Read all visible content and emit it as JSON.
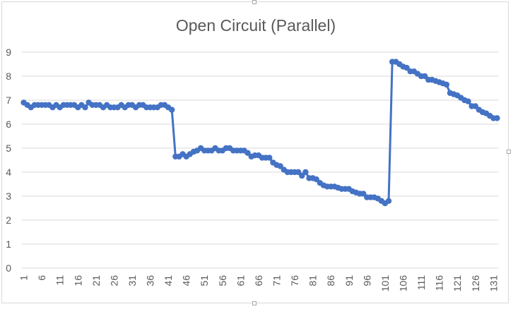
{
  "chart_data": {
    "type": "line",
    "title": "Open Circuit (Parallel)",
    "xlabel": "",
    "ylabel": "",
    "ylim": [
      0,
      9
    ],
    "y_ticks": [
      0,
      1,
      2,
      3,
      4,
      5,
      6,
      7,
      8,
      9
    ],
    "x_tick_labels": [
      "1",
      "6",
      "11",
      "16",
      "21",
      "26",
      "31",
      "36",
      "41",
      "46",
      "51",
      "56",
      "61",
      "66",
      "71",
      "76",
      "81",
      "86",
      "91",
      "96",
      "101",
      "106",
      "111",
      "116",
      "121",
      "126",
      "131"
    ],
    "grid": true,
    "legend": "none",
    "series": [
      {
        "color": "#4472c4",
        "x": [
          1,
          2,
          3,
          4,
          5,
          6,
          7,
          8,
          9,
          10,
          11,
          12,
          13,
          14,
          15,
          16,
          17,
          18,
          19,
          20,
          21,
          22,
          23,
          24,
          25,
          26,
          27,
          28,
          29,
          30,
          31,
          32,
          33,
          34,
          35,
          36,
          37,
          38,
          39,
          40,
          41,
          42,
          43,
          44,
          45,
          46,
          47,
          48,
          49,
          50,
          51,
          52,
          53,
          54,
          55,
          56,
          57,
          58,
          59,
          60,
          61,
          62,
          63,
          64,
          65,
          66,
          67,
          68,
          69,
          70,
          71,
          72,
          73,
          74,
          75,
          76,
          77,
          78,
          79,
          80,
          81,
          82,
          83,
          84,
          85,
          86,
          87,
          88,
          89,
          90,
          91,
          92,
          93,
          94,
          95,
          96,
          97,
          98,
          99,
          100,
          101,
          102,
          103,
          104,
          105,
          106,
          107,
          108,
          109,
          110,
          111,
          112,
          113,
          114,
          115,
          116,
          117,
          118,
          119,
          120,
          121,
          122,
          123,
          124,
          125,
          126,
          127,
          128,
          129,
          130,
          131,
          132
        ],
        "values": [
          6.9,
          6.8,
          6.7,
          6.8,
          6.8,
          6.8,
          6.8,
          6.8,
          6.7,
          6.8,
          6.7,
          6.8,
          6.8,
          6.8,
          6.8,
          6.7,
          6.8,
          6.7,
          6.9,
          6.8,
          6.8,
          6.8,
          6.7,
          6.8,
          6.7,
          6.7,
          6.7,
          6.8,
          6.7,
          6.8,
          6.8,
          6.7,
          6.8,
          6.8,
          6.7,
          6.7,
          6.7,
          6.7,
          6.8,
          6.8,
          6.7,
          6.6,
          4.65,
          4.65,
          4.75,
          4.65,
          4.75,
          4.85,
          4.9,
          5.0,
          4.9,
          4.9,
          4.9,
          5.0,
          4.9,
          4.9,
          5.0,
          5.0,
          4.9,
          4.9,
          4.9,
          4.9,
          4.8,
          4.65,
          4.7,
          4.7,
          4.6,
          4.6,
          4.6,
          4.4,
          4.3,
          4.25,
          4.1,
          4.0,
          4.0,
          4.0,
          4.0,
          3.85,
          4.0,
          3.75,
          3.75,
          3.7,
          3.55,
          3.45,
          3.4,
          3.4,
          3.4,
          3.35,
          3.3,
          3.3,
          3.3,
          3.2,
          3.15,
          3.1,
          3.1,
          2.95,
          2.95,
          2.95,
          2.9,
          2.8,
          2.7,
          2.8,
          8.6,
          8.6,
          8.5,
          8.4,
          8.35,
          8.2,
          8.2,
          8.1,
          8.0,
          8.0,
          7.85,
          7.85,
          7.8,
          7.75,
          7.7,
          7.65,
          7.3,
          7.25,
          7.2,
          7.1,
          7.0,
          6.95,
          6.75,
          6.75,
          6.6,
          6.5,
          6.45,
          6.35,
          6.25,
          6.25
        ]
      }
    ]
  }
}
